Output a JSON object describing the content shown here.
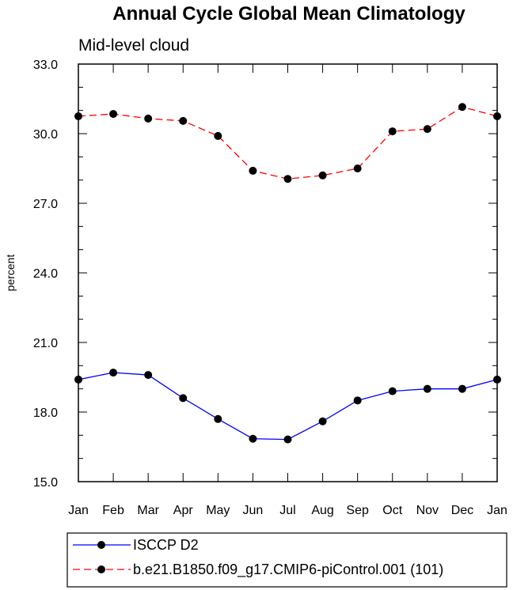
{
  "chart_data": {
    "type": "line",
    "title": "Annual Cycle Global Mean Climatology",
    "subtitle": "Mid-level cloud",
    "xlabel": "",
    "ylabel": "percent",
    "categories": [
      "Jan",
      "Feb",
      "Mar",
      "Apr",
      "May",
      "Jun",
      "Jul",
      "Aug",
      "Sep",
      "Oct",
      "Nov",
      "Dec",
      "Jan"
    ],
    "ylim": [
      15.0,
      33.0
    ],
    "yticks": [
      "15.0",
      "18.0",
      "21.0",
      "24.0",
      "27.0",
      "30.0",
      "33.0"
    ],
    "grid": false,
    "legend_position": "bottom",
    "series": [
      {
        "name": "ISCCP D2",
        "color": "#0000ff",
        "line_style": "solid",
        "marker": "filled-circle",
        "values": [
          19.4,
          19.7,
          19.6,
          18.6,
          17.7,
          16.85,
          16.82,
          17.6,
          18.5,
          18.9,
          19.0,
          19.0,
          19.4
        ]
      },
      {
        "name": "b.e21.B1850.f09_g17.CMIP6-piControl.001 (101)",
        "color": "#ff0000",
        "line_style": "dashed",
        "marker": "filled-circle",
        "values": [
          30.75,
          30.85,
          30.65,
          30.55,
          29.9,
          28.4,
          28.05,
          28.2,
          28.5,
          30.1,
          30.2,
          31.15,
          30.75
        ]
      }
    ]
  }
}
